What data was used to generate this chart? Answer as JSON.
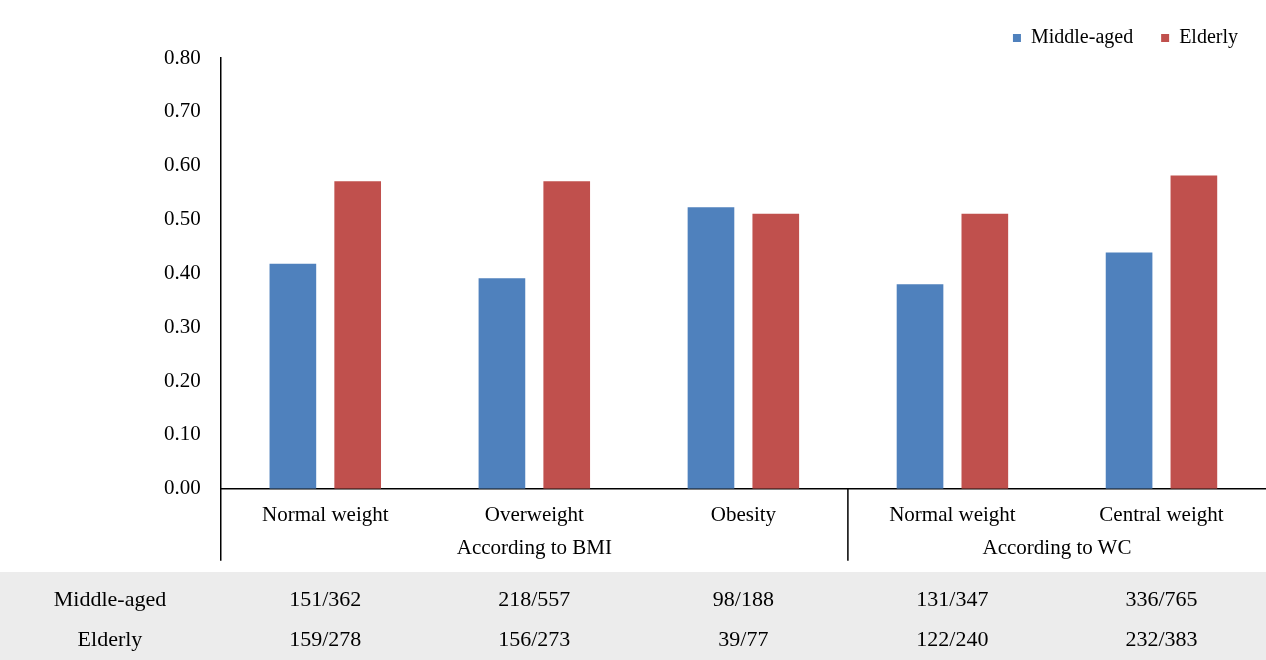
{
  "chart_data": {
    "type": "bar",
    "categories": [
      "Normal weight",
      "Overweight",
      "Obesity",
      "Normal weight",
      "Central weight"
    ],
    "series": [
      {
        "name": "Middle-aged",
        "color": "#4f81bd",
        "values": [
          0.418,
          0.391,
          0.523,
          0.38,
          0.439
        ]
      },
      {
        "name": "Elderly",
        "color": "#c0504d",
        "values": [
          0.571,
          0.571,
          0.511,
          0.511,
          0.582
        ]
      }
    ],
    "ylim": [
      0,
      0.8
    ],
    "yticks": [
      {
        "value": 0,
        "label": "0.00"
      },
      {
        "value": 0.1,
        "label": "0.10"
      },
      {
        "value": 0.2,
        "label": "0.20"
      },
      {
        "value": 0.3,
        "label": "0.30"
      },
      {
        "value": 0.4,
        "label": "0.40"
      },
      {
        "value": 0.5,
        "label": "0.50"
      },
      {
        "value": 0.6,
        "label": "0.60"
      },
      {
        "value": 0.7,
        "label": "0.70"
      },
      {
        "value": 0.8,
        "label": "0.80"
      }
    ],
    "grid": false,
    "legend": "top right",
    "annotations": [
      "According to BMI",
      "According to WC",
      "151/362",
      "218/557",
      "98/188",
      "131/347",
      "336/765",
      "159/278",
      "156/273",
      "39/77",
      "122/240",
      "232/383"
    ]
  }
}
